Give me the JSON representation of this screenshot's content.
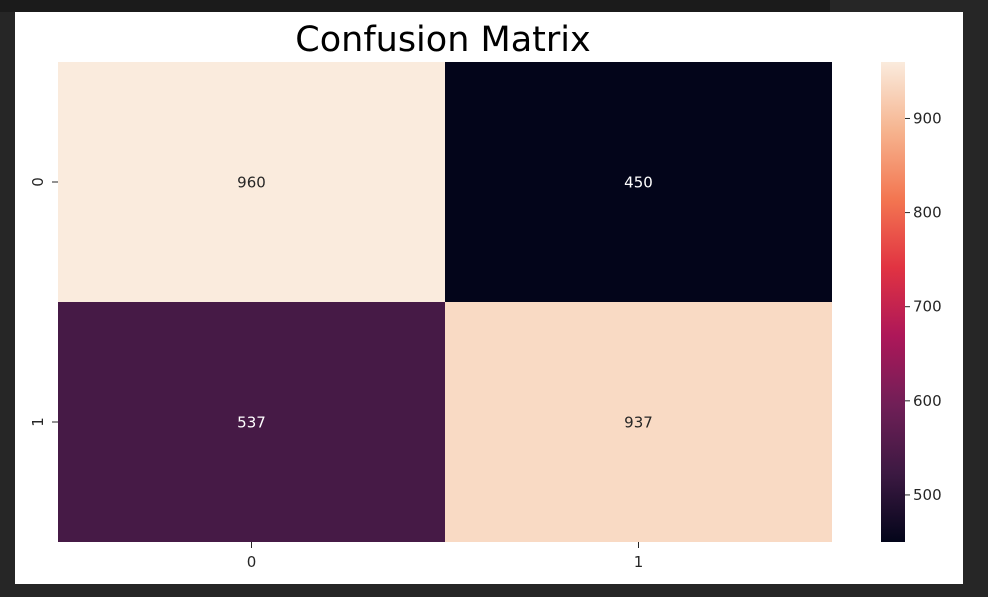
{
  "chart_data": {
    "type": "heatmap",
    "title": "Confusion Matrix",
    "x_tick_labels": [
      "0",
      "1"
    ],
    "y_tick_labels": [
      "0",
      "1"
    ],
    "values": [
      [
        960,
        450
      ],
      [
        537,
        937
      ]
    ],
    "colormap": "rocket",
    "colorbar": {
      "vmin": 450,
      "vmax": 960,
      "ticks": [
        500,
        600,
        700,
        800,
        900
      ],
      "tick_labels": [
        "500",
        "600",
        "700",
        "800",
        "900"
      ]
    },
    "grid": false
  },
  "colors": {
    "background": "#262626",
    "figure": "#ffffff",
    "colormap_stops": [
      "#03051a",
      "#3c1942",
      "#701f57",
      "#ad1759",
      "#e13342",
      "#f37651",
      "#f6b48f",
      "#faebdd"
    ]
  }
}
